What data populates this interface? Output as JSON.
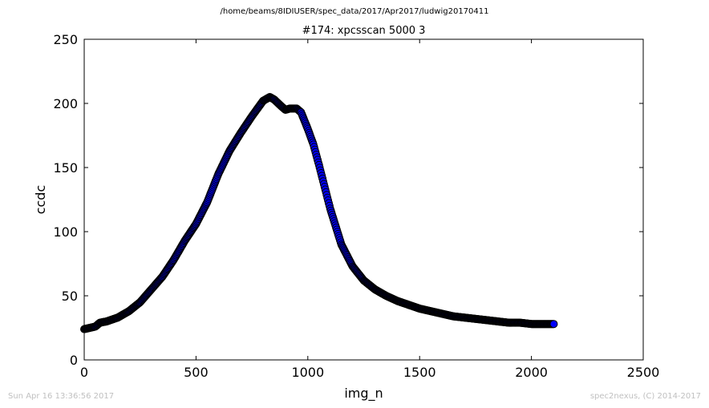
{
  "page": {
    "suptitle": "/home/beams/8IDIUSER/spec_data/2017/Apr2017/ludwig20170411",
    "footer_left": "Sun Apr 16 13:36:56 2017",
    "footer_right": "spec2nexus, (C) 2014-2017"
  },
  "chart_data": {
    "type": "scatter",
    "title": "#174: xpcsscan 5000 3",
    "xlabel": "img_n",
    "ylabel": "ccdc",
    "xlim": [
      0,
      2500
    ],
    "ylim": [
      0,
      250
    ],
    "xticks": [
      0,
      500,
      1000,
      1500,
      2000,
      2500
    ],
    "yticks": [
      0,
      50,
      100,
      150,
      200,
      250
    ],
    "grid": false,
    "legend": "none",
    "series": [
      {
        "color": "#0000ff",
        "edgecolor": "#000000",
        "marker": "circle",
        "x": [
          0,
          50,
          70,
          100,
          150,
          200,
          250,
          300,
          350,
          400,
          450,
          500,
          550,
          600,
          650,
          700,
          750,
          800,
          830,
          850,
          880,
          900,
          920,
          950,
          970,
          1000,
          1025,
          1050,
          1075,
          1100,
          1150,
          1200,
          1250,
          1300,
          1350,
          1400,
          1450,
          1500,
          1550,
          1600,
          1650,
          1700,
          1750,
          1800,
          1850,
          1900,
          1950,
          2000,
          2050,
          2100
        ],
        "y": [
          24,
          26,
          29,
          30,
          33,
          38,
          45,
          55,
          65,
          78,
          93,
          106,
          123,
          145,
          163,
          177,
          190,
          202,
          205,
          203,
          198,
          195,
          196,
          196,
          193,
          180,
          168,
          152,
          135,
          118,
          90,
          73,
          62,
          55,
          50,
          46,
          43,
          40,
          38,
          36,
          34,
          33,
          32,
          31,
          30,
          29,
          29,
          28,
          28,
          28
        ]
      }
    ]
  }
}
